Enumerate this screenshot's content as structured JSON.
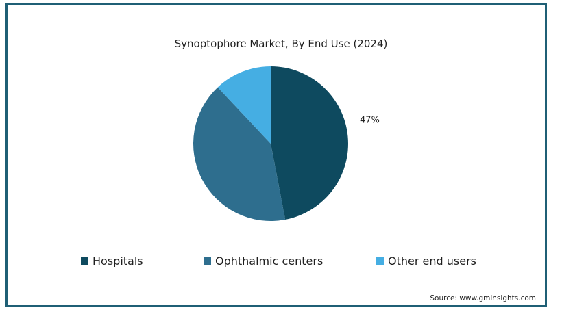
{
  "chart_data": {
    "type": "pie",
    "title": "Synoptophore Market, By End Use (2024)",
    "slices": [
      {
        "name": "Hospitals",
        "value": 47,
        "color": "#0e4a5f",
        "label": "47%"
      },
      {
        "name": "Ophthalmic centers",
        "value": 41,
        "color": "#2e6e8e",
        "label": ""
      },
      {
        "name": "Other end users",
        "value": 12,
        "color": "#45aee3",
        "label": ""
      }
    ],
    "legend_position": "bottom"
  },
  "source": "Source: www.gminsights.com",
  "colors": {
    "frame_border": "#1f5f75"
  }
}
